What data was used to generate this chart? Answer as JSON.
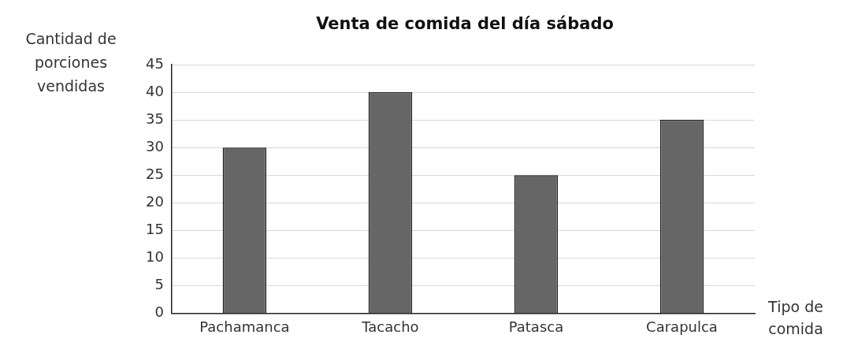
{
  "chart_data": {
    "type": "bar",
    "title": "Venta de comida del día sábado",
    "ylabel": "Cantidad de porciones vendidas",
    "xlabel": "Tipo de comida",
    "categories": [
      "Pachamanca",
      "Tacacho",
      "Patasca",
      "Carapulca"
    ],
    "values": [
      30,
      40,
      25,
      35
    ],
    "color": "#666666",
    "ylim": [
      0,
      45
    ],
    "yticks": [
      0,
      5,
      10,
      15,
      20,
      25,
      30,
      35,
      40,
      45
    ],
    "grid": "y",
    "legend": false
  }
}
